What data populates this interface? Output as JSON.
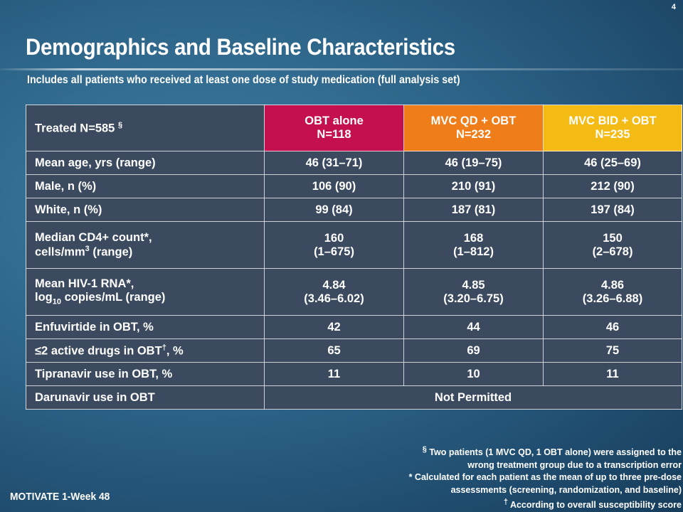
{
  "page_number": "4",
  "title": "Demographics and Baseline Characteristics",
  "subtitle": "Includes all patients who received at least one dose of study medication (full analysis set)",
  "table": {
    "header": {
      "label": "Treated N=585",
      "label_mark": "§",
      "col1_line1": "OBT alone",
      "col1_line2": "N=118",
      "col2_line1": "MVC QD + OBT",
      "col2_line2": "N=232",
      "col3_line1": "MVC BID + OBT",
      "col3_line2": "N=235"
    },
    "rows": [
      {
        "label": "Mean age, yrs (range)",
        "values": [
          "46 (31–71)",
          "46 (19–75)",
          "46 (25–69)"
        ]
      },
      {
        "label": "Male, n (%)",
        "values": [
          "106 (90)",
          "210 (91)",
          "212 (90)"
        ]
      },
      {
        "label": "White, n (%)",
        "values": [
          "99 (84)",
          "187 (81)",
          "197 (84)"
        ]
      },
      {
        "label_line1": "Median CD4+ count*,",
        "label_line2_pre": "cells/mm",
        "label_line2_sup": "3",
        "label_line2_post": " (range)",
        "values": [
          [
            "160",
            "(1–675)"
          ],
          [
            "168",
            "(1–812)"
          ],
          [
            "150",
            "(2–678)"
          ]
        ]
      },
      {
        "label_line1": "Mean HIV-1 RNA*,",
        "label_line2_pre": "log",
        "label_line2_sub": "10",
        "label_line2_post": " copies/mL (range)",
        "values": [
          [
            "4.84",
            "(3.46–6.02)"
          ],
          [
            "4.85",
            "(3.20–6.75)"
          ],
          [
            "4.86",
            "(3.26–6.88)"
          ]
        ]
      },
      {
        "label": "Enfuvirtide in OBT, %",
        "values": [
          "42",
          "44",
          "46"
        ]
      },
      {
        "label_pre": "≤2 active drugs in OBT",
        "label_sup": "†",
        "label_post": ", %",
        "values": [
          "65",
          "69",
          "75"
        ]
      },
      {
        "label": "Tipranavir use in OBT, %",
        "values": [
          "11",
          "10",
          "11"
        ]
      },
      {
        "label": "Darunavir use in OBT",
        "merged_value": "Not Permitted"
      }
    ]
  },
  "footnotes": {
    "f1_mark": "§",
    "f1_line1": " Two patients (1 MVC QD, 1 OBT alone) were assigned to the",
    "f1_line2": "wrong treatment group due to a transcription error",
    "f2_line1": "* Calculated for each patient as the mean of up to three pre-dose",
    "f2_line2": "assessments (screening, randomization, and baseline)",
    "f3_mark": "†",
    "f3_line1": " According to overall susceptibility score"
  },
  "footer_label": "MOTIVATE 1-Week 48",
  "colors": {
    "obt": "#c4104e",
    "mvc_qd": "#ef7d1a",
    "mvc_bid": "#f5bb15",
    "table_bg": "#3b4a5e",
    "background": "#2d6488"
  }
}
